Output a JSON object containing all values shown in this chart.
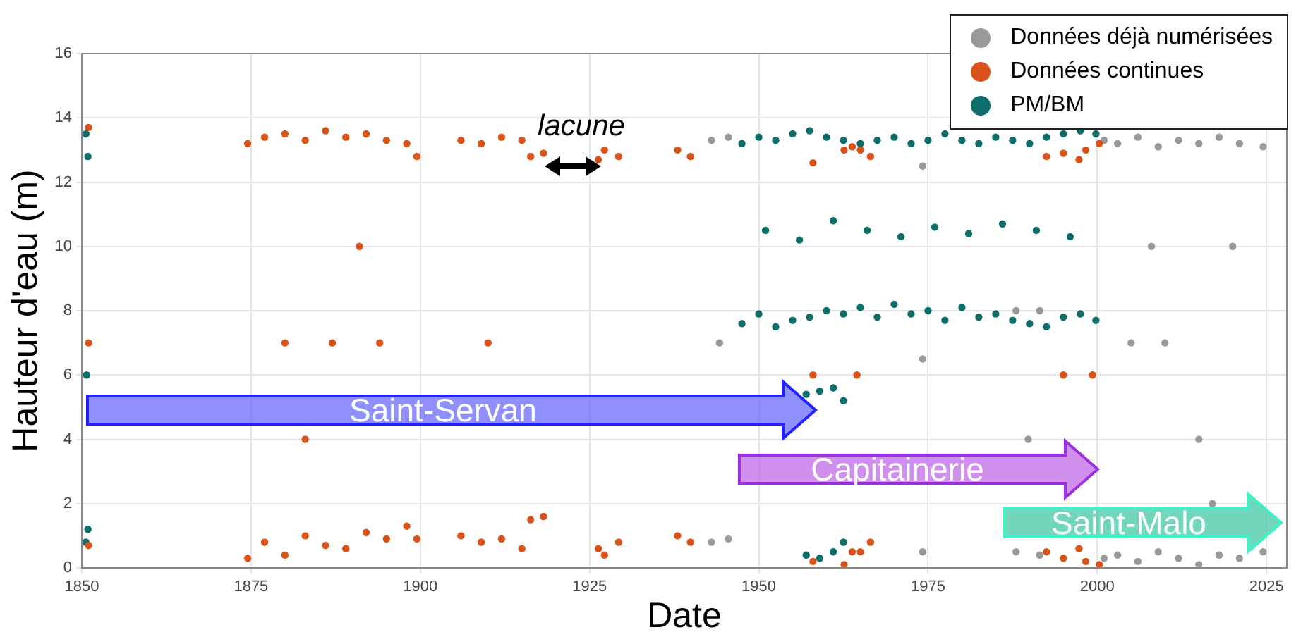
{
  "chart_data": {
    "type": "scatter",
    "xlabel": "Date",
    "ylabel": "Hauteur d'eau (m)",
    "xlim": [
      1850,
      2028
    ],
    "xticks": [
      1850,
      1875,
      1900,
      1925,
      1950,
      1975,
      2000,
      2025
    ],
    "ylim": [
      0,
      16
    ],
    "yticks": [
      0,
      2,
      4,
      6,
      8,
      10,
      12,
      14,
      16
    ],
    "grid": true,
    "legend": "top right",
    "marker": "circle",
    "annotations": [
      "lacune",
      "Saint-Servan",
      "Capitainerie",
      "Saint-Malo"
    ],
    "series": [
      {
        "name": "Données déjà numérisées",
        "color": "#999999",
        "x": [
          1943,
          1943,
          1944.2,
          1945.5,
          1945.5,
          1974.2,
          1974.2,
          1974.2,
          1988,
          1988,
          1989.8,
          1991.5,
          1991.5,
          2001,
          2001,
          2003,
          2003,
          2006,
          2006,
          2009,
          2009,
          2012,
          2012,
          2015,
          2015,
          2018,
          2018,
          2021,
          2021,
          2024.5,
          2024.5,
          2005,
          2010,
          2015,
          2020,
          2008,
          2017
        ],
        "values": [
          13.3,
          0.8,
          7,
          13.4,
          0.9,
          12.5,
          0.5,
          6.5,
          8,
          0.5,
          4,
          8,
          0.4,
          13.3,
          0.3,
          13.2,
          0.4,
          13.4,
          0.2,
          13.1,
          0.5,
          13.3,
          0.3,
          13.2,
          0.1,
          13.4,
          0.4,
          13.2,
          0.3,
          13.1,
          0.5,
          7,
          7,
          4,
          10,
          10,
          2
        ]
      },
      {
        "name": "Données continues",
        "color": "#d95319",
        "x": [
          1851,
          1851,
          1851,
          1874.5,
          1874.5,
          1877,
          1877,
          1880,
          1880,
          1883,
          1883,
          1886,
          1886,
          1889,
          1889,
          1892,
          1892,
          1895,
          1895,
          1898,
          1898,
          1899.5,
          1899.5,
          1880,
          1887,
          1894,
          1883,
          1891,
          1906,
          1906,
          1909,
          1909,
          1912,
          1912,
          1915,
          1915,
          1910,
          1916.3,
          1916.3,
          1918.2,
          1918.2,
          1926.3,
          1926.3,
          1927.2,
          1927.2,
          1929.3,
          1929.3,
          1938,
          1938,
          1939.9,
          1939.9,
          1958,
          1958,
          1958,
          1962.6,
          1962.6,
          1963.8,
          1963.8,
          1965,
          1965,
          1966.5,
          1966.5,
          1964.5,
          1992.5,
          1992.5,
          1995,
          1995,
          1997.3,
          1997.3,
          1995,
          1998.3,
          1998.3,
          2000.3,
          2000.3,
          1999.3
        ],
        "values": [
          13.7,
          0.7,
          7,
          13.2,
          0.3,
          13.4,
          0.8,
          13.5,
          0.4,
          13.3,
          1.0,
          13.6,
          0.7,
          13.4,
          0.6,
          13.5,
          1.1,
          13.3,
          0.9,
          13.2,
          1.3,
          12.8,
          0.9,
          7,
          7,
          7,
          4,
          10,
          13.3,
          1.0,
          13.2,
          0.8,
          13.4,
          0.9,
          13.3,
          0.6,
          7,
          12.8,
          1.5,
          12.9,
          1.6,
          12.7,
          0.6,
          13.0,
          0.4,
          12.8,
          0.8,
          13.0,
          1.0,
          12.8,
          0.8,
          12.6,
          0.2,
          6,
          13.0,
          0.1,
          13.1,
          0.5,
          13.0,
          0.5,
          12.8,
          0.8,
          6,
          12.8,
          0.5,
          12.9,
          0.3,
          12.7,
          0.6,
          6,
          13.0,
          0.2,
          13.2,
          0.1,
          6
        ]
      },
      {
        "name": "PM/BM",
        "color": "#0b6e6a",
        "x": [
          1850.6,
          1850.6,
          1850.9,
          1850.9,
          1850.7,
          1947.5,
          1947.5,
          1950,
          1950,
          1952.5,
          1952.5,
          1955,
          1955,
          1957.5,
          1957.5,
          1960,
          1960,
          1962.5,
          1962.5,
          1965,
          1965,
          1967.5,
          1967.5,
          1970,
          1970,
          1972.5,
          1972.5,
          1975,
          1975,
          1977.5,
          1977.5,
          1980,
          1980,
          1982.5,
          1982.5,
          1985,
          1985,
          1987.5,
          1987.5,
          1990,
          1990,
          1992.5,
          1992.5,
          1995,
          1995,
          1997.5,
          1997.5,
          1999.8,
          1999.8,
          1951,
          1956,
          1961,
          1966,
          1971,
          1976,
          1981,
          1986,
          1991,
          1996,
          1957,
          1957,
          1959,
          1959,
          1961,
          1961,
          1962.5,
          1962.5
        ],
        "values": [
          13.5,
          0.8,
          12.8,
          1.2,
          6,
          13.2,
          7.6,
          13.4,
          7.9,
          13.3,
          7.5,
          13.5,
          7.7,
          13.6,
          7.8,
          13.4,
          8.0,
          13.3,
          7.9,
          13.2,
          8.1,
          13.3,
          7.8,
          13.4,
          8.2,
          13.2,
          7.9,
          13.3,
          8.0,
          13.5,
          7.7,
          13.3,
          8.1,
          13.2,
          7.8,
          13.4,
          7.9,
          13.3,
          7.7,
          13.2,
          7.6,
          13.4,
          7.5,
          13.5,
          7.8,
          13.6,
          7.9,
          13.5,
          7.7,
          10.5,
          10.2,
          10.8,
          10.5,
          10.3,
          10.6,
          10.4,
          10.7,
          10.5,
          10.3,
          5.4,
          0.4,
          5.5,
          0.3,
          5.6,
          0.5,
          5.2,
          0.8
        ]
      }
    ]
  }
}
